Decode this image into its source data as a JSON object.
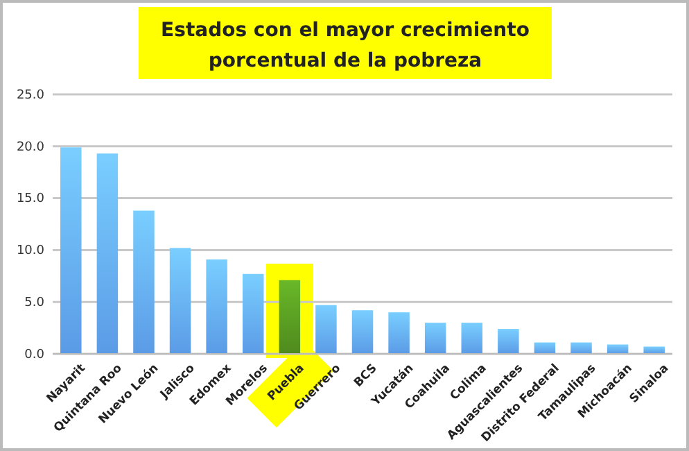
{
  "chart_data": {
    "type": "bar",
    "title": "Estados con el mayor crecimiento\nporcentual de la pobreza",
    "categories": [
      "Nayarit",
      "Quintana Roo",
      "Nuevo León",
      "Jalisco",
      "Edomex",
      "Morelos",
      "Puebla",
      "Guerrero",
      "BCS",
      "Yucatán",
      "Coahuila",
      "Colima",
      "Aguascalientes",
      "Distrito Federal",
      "Tamaulipas",
      "Michoacán",
      "Sinaloa"
    ],
    "values": [
      19.9,
      19.3,
      13.8,
      10.2,
      9.1,
      7.7,
      7.1,
      4.7,
      4.2,
      4.0,
      3.0,
      3.0,
      2.4,
      1.1,
      1.1,
      0.9,
      0.7
    ],
    "colors": [
      "#5b9be6",
      "#5b9be6",
      "#5b9be6",
      "#5b9be6",
      "#5b9be6",
      "#5b9be6",
      "#4f8a1e",
      "#5b9be6",
      "#5b9be6",
      "#5b9be6",
      "#5b9be6",
      "#5b9be6",
      "#5b9be6",
      "#5b9be6",
      "#5b9be6",
      "#5b9be6",
      "#5b9be6"
    ],
    "ylim": [
      0,
      25
    ],
    "yticks": [
      {
        "value": 0,
        "label": "0.0"
      },
      {
        "value": 5,
        "label": "5.0"
      },
      {
        "value": 10,
        "label": "10.0"
      },
      {
        "value": 15,
        "label": "15.0"
      },
      {
        "value": 20,
        "label": "20.0"
      },
      {
        "value": 25,
        "label": "25.0"
      }
    ],
    "grid": "y"
  }
}
